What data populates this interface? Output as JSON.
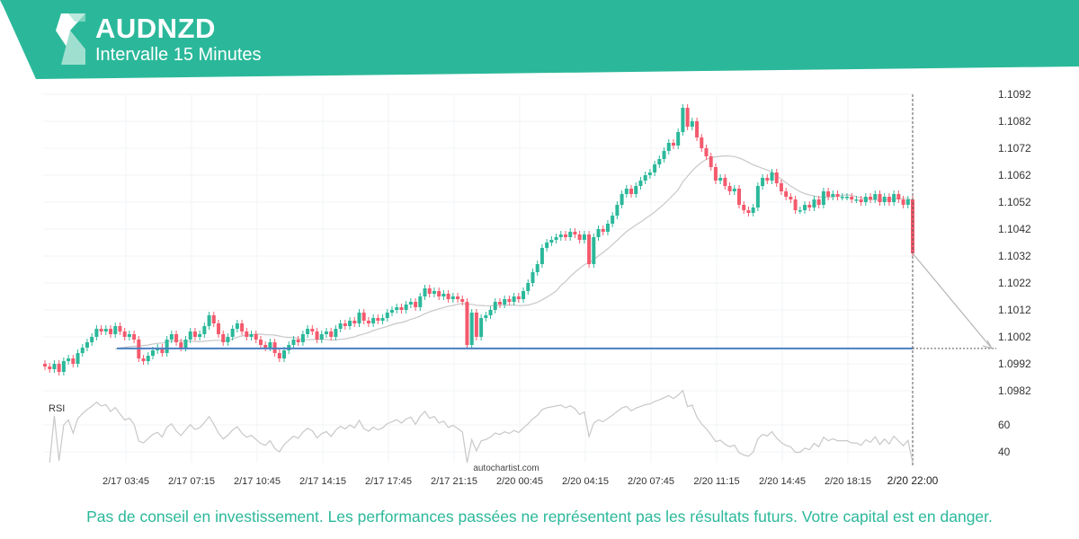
{
  "header": {
    "symbol": "AUDNZD",
    "interval": "Intervalle 15 Minutes"
  },
  "colors": {
    "brand": "#2bb89a",
    "bull": "#2bb89a",
    "bear": "#f45a6d",
    "target_line": "#4a7fc1",
    "indicator": "#c8c8c8"
  },
  "watermark": "autochartist.com",
  "footer": {
    "disclaimer": "Pas de conseil en investissement. Les performances passées ne représentent pas les résultats futurs. Votre capital est en danger."
  },
  "chart_data": {
    "type": "candlestick",
    "symbol": "AUDNZD",
    "price_ticks": [
      "1.1092",
      "1.1082",
      "1.1072",
      "1.1062",
      "1.1052",
      "1.1042",
      "1.1032",
      "1.1022",
      "1.1012",
      "1.1002",
      "1.0992",
      "1.0982"
    ],
    "ylim": [
      1.0982,
      1.1092
    ],
    "time_ticks": [
      "2/17 03:45",
      "2/17 07:15",
      "2/17 10:45",
      "2/17 14:15",
      "2/17 17:45",
      "2/17 21:15",
      "2/20 00:45",
      "2/20 04:15",
      "2/20 07:45",
      "2/20 11:15",
      "2/20 14:45",
      "2/20 18:15",
      "2/20 22:00"
    ],
    "first_open": 1.0992,
    "closes": [
      1.0991,
      1.099,
      1.0992,
      1.0989,
      1.0993,
      1.0994,
      1.0992,
      1.0996,
      1.0998,
      1.1,
      1.1002,
      1.1005,
      1.1004,
      1.1005,
      1.1003,
      1.1006,
      1.1004,
      1.1002,
      1.1003,
      1.1001,
      1.0994,
      1.0993,
      1.0995,
      1.0997,
      1.0998,
      1.0996,
      1.1001,
      1.1003,
      1.1,
      1.0998,
      1.1001,
      1.1004,
      1.1002,
      1.1003,
      1.1006,
      1.101,
      1.1007,
      1.1003,
      1.1,
      1.1002,
      1.1005,
      1.1007,
      1.1004,
      1.1002,
      1.1003,
      1.1001,
      1.0999,
      1.0998,
      1.1,
      1.0996,
      1.0994,
      1.0997,
      1.0999,
      1.1001,
      1.1,
      1.1003,
      1.1005,
      1.1004,
      1.1001,
      1.1003,
      1.1004,
      1.1002,
      1.1005,
      1.1007,
      1.1006,
      1.1008,
      1.1007,
      1.1011,
      1.1008,
      1.1007,
      1.1009,
      1.1008,
      1.1009,
      1.1011,
      1.1012,
      1.1013,
      1.1012,
      1.1014,
      1.1015,
      1.1013,
      1.1017,
      1.102,
      1.1018,
      1.1019,
      1.1017,
      1.1018,
      1.1016,
      1.1017,
      1.1016,
      1.1015,
      1.0999,
      1.1011,
      1.1002,
      1.1009,
      1.101,
      1.1012,
      1.1015,
      1.1014,
      1.1016,
      1.1015,
      1.1017,
      1.1016,
      1.1019,
      1.1022,
      1.1026,
      1.1029,
      1.1035,
      1.1037,
      1.1038,
      1.1039,
      1.104,
      1.1039,
      1.1041,
      1.104,
      1.1038,
      1.104,
      1.1029,
      1.1039,
      1.1042,
      1.1041,
      1.1044,
      1.1047,
      1.1051,
      1.1055,
      1.1057,
      1.1055,
      1.1058,
      1.106,
      1.1062,
      1.1063,
      1.1066,
      1.1068,
      1.1071,
      1.1074,
      1.1073,
      1.1078,
      1.1087,
      1.108,
      1.1082,
      1.1076,
      1.1072,
      1.1069,
      1.1065,
      1.106,
      1.1061,
      1.1058,
      1.1056,
      1.1057,
      1.1051,
      1.1049,
      1.1048,
      1.105,
      1.1058,
      1.1061,
      1.106,
      1.1063,
      1.1059,
      1.1056,
      1.1054,
      1.1053,
      1.1049,
      1.1049,
      1.1051,
      1.105,
      1.1053,
      1.1051,
      1.1056,
      1.1054,
      1.1055,
      1.1054,
      1.1054,
      1.1054,
      1.1053,
      1.1053,
      1.1052,
      1.1054,
      1.1053,
      1.1055,
      1.1052,
      1.1054,
      1.1052,
      1.1055,
      1.1053,
      1.1051,
      1.1053,
      1.1033
    ],
    "target_level": 1.09977,
    "indicator": {
      "name": "RSI",
      "ticks": [
        "60",
        "40"
      ],
      "ylim": [
        20,
        80
      ]
    }
  }
}
